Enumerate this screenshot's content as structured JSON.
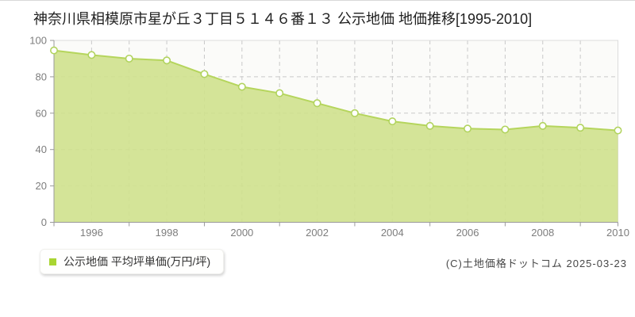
{
  "page": {
    "title": "神奈川県相模原市星が丘３丁目５１４６番１３ 公示地価 地価推移[1995-2010]",
    "copyright": "(C)土地価格ドットコム 2025-03-23"
  },
  "legend": {
    "label": "公示地価 平均坪単価(万円/坪)",
    "marker_color": "#a9d532"
  },
  "chart_data": {
    "type": "area",
    "title": "神奈川県相模原市星が丘３丁目５１４６番１３ 公示地価 地価推移[1995-2010]",
    "xlabel": "",
    "ylabel": "平均坪単価(万円/坪)",
    "x": [
      1995,
      1996,
      1997,
      1998,
      1999,
      2000,
      2001,
      2002,
      2003,
      2004,
      2005,
      2006,
      2007,
      2008,
      2009,
      2010
    ],
    "values": [
      94.5,
      92,
      90,
      89,
      81.5,
      74.5,
      71,
      65.5,
      60,
      55.5,
      53,
      51.5,
      51,
      53,
      52,
      50.5
    ],
    "series_name": "公示地価 平均坪単価(万円/坪)",
    "ylim": [
      0,
      100
    ],
    "y_ticks": [
      0,
      20,
      40,
      60,
      80,
      100
    ],
    "x_tick_labels": [
      "1996",
      "1998",
      "2000",
      "2002",
      "2004",
      "2006",
      "2008",
      "2010"
    ],
    "x_minor_tick_years": [
      1995,
      1997,
      1999,
      2001,
      2003,
      2005,
      2007,
      2009,
      2010
    ],
    "grid": "dashed",
    "legend_position": "bottom-left",
    "colors": {
      "plot_bg": "#fbfbf9",
      "plot_border": "#dcdcdc",
      "grid": "#c9c9c9",
      "axis": "#9a9a9a",
      "tick_text": "#7d7d7d",
      "area_fill": "#cfe18d",
      "line": "#b5d55c",
      "marker_fill": "#ffffff",
      "marker_stroke": "#b1d35e"
    }
  }
}
